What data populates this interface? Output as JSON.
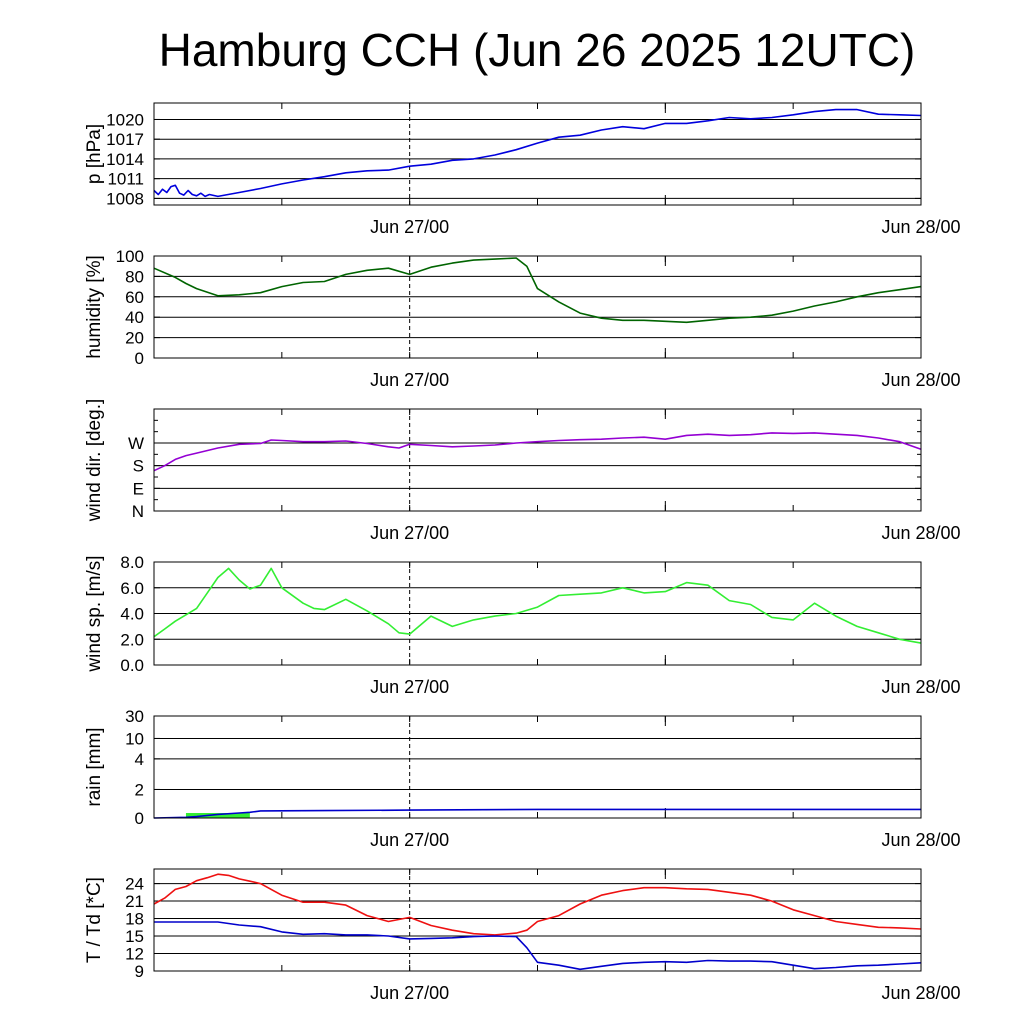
{
  "title": "Hamburg CCH (Jun 26 2025 12UTC)",
  "x_tick_labels": [
    "Jun 27/00",
    "Jun 28/00"
  ],
  "colors": {
    "pressure": "#0000dd",
    "humidity": "#006400",
    "wind_dir": "#9400d3",
    "wind_sp": "#33ee33",
    "rain_line": "#0000cc",
    "rain_bar": "#33ee33",
    "temp": "#ee1111",
    "dewpoint": "#0000cc"
  },
  "chart_data": [
    {
      "type": "line",
      "id": "pressure",
      "ylabel": "p [hPa]",
      "ylim": [
        1007,
        1022.5
      ],
      "yticks": [
        1008,
        1011,
        1014,
        1017,
        1020
      ],
      "ytick_labels": [
        "1008",
        "1011",
        "1014",
        "1017",
        "1020"
      ],
      "xlim": [
        0,
        36
      ],
      "x_tick_hours": [
        12,
        36
      ],
      "series": [
        {
          "color": "#0000dd",
          "x": [
            0,
            0.2,
            0.4,
            0.6,
            0.8,
            1,
            1.2,
            1.4,
            1.6,
            1.8,
            2,
            2.2,
            2.4,
            2.6,
            3,
            4,
            5,
            6,
            7,
            8,
            9,
            10,
            11,
            12,
            13,
            14,
            15,
            16,
            17,
            18,
            19,
            20,
            21,
            22,
            23,
            24,
            25,
            26,
            27,
            28,
            29,
            30,
            31,
            32,
            33,
            34,
            35,
            36
          ],
          "y": [
            1009.2,
            1008.6,
            1009.4,
            1008.9,
            1009.8,
            1010.0,
            1008.8,
            1008.5,
            1009.2,
            1008.6,
            1008.4,
            1008.8,
            1008.3,
            1008.6,
            1008.3,
            1008.9,
            1009.5,
            1010.2,
            1010.8,
            1011.3,
            1011.9,
            1012.2,
            1012.3,
            1012.9,
            1013.2,
            1013.8,
            1014.0,
            1014.6,
            1015.4,
            1016.4,
            1017.3,
            1017.6,
            1018.4,
            1018.9,
            1018.6,
            1019.4,
            1019.4,
            1019.8,
            1020.3,
            1020.1,
            1020.3,
            1020.7,
            1021.2,
            1021.5,
            1021.5,
            1020.8,
            1020.7,
            1020.6
          ]
        }
      ]
    },
    {
      "type": "line",
      "id": "humidity",
      "ylabel": "humidity [%]",
      "ylim": [
        0,
        100
      ],
      "yticks": [
        0,
        20,
        40,
        60,
        80,
        100
      ],
      "ytick_labels": [
        "0",
        "20",
        "40",
        "60",
        "80",
        "100"
      ],
      "xlim": [
        0,
        36
      ],
      "x_tick_hours": [
        12,
        36
      ],
      "series": [
        {
          "color": "#006400",
          "x": [
            0,
            1,
            1.5,
            2,
            3,
            4,
            5,
            6,
            7,
            8,
            9,
            10,
            11,
            12,
            13,
            14,
            15,
            16,
            17,
            17.5,
            18,
            19,
            20,
            21,
            22,
            23,
            24,
            25,
            26,
            27,
            28,
            29,
            30,
            31,
            32,
            33,
            34,
            35,
            36
          ],
          "y": [
            88,
            79,
            73,
            68,
            61,
            62,
            64,
            70,
            74,
            75,
            82,
            86,
            88,
            82,
            89,
            93,
            96,
            97,
            98,
            90,
            68,
            55,
            44,
            39,
            37,
            37,
            36,
            35,
            37,
            39,
            40,
            42,
            46,
            51,
            55,
            60,
            64,
            67,
            70
          ]
        }
      ]
    },
    {
      "type": "line",
      "id": "wind_dir",
      "ylabel": "wind dir. [deg.]",
      "ylim": [
        0,
        405
      ],
      "yticks": [
        0,
        90,
        180,
        270
      ],
      "ytick_labels": [
        "N",
        "E",
        "S",
        "W"
      ],
      "xlim": [
        0,
        36
      ],
      "x_tick_hours": [
        12,
        36
      ],
      "series": [
        {
          "color": "#9400d3",
          "x": [
            0,
            0.5,
            1,
            1.5,
            2,
            3,
            4,
            5,
            5.5,
            6,
            7,
            8,
            9,
            10,
            11,
            11.5,
            12,
            13,
            14,
            15,
            16,
            17,
            18,
            19,
            20,
            21,
            22,
            23,
            24,
            25,
            26,
            27,
            28,
            29,
            30,
            31,
            32,
            33,
            34,
            35,
            36
          ],
          "y": [
            160,
            180,
            205,
            220,
            230,
            250,
            265,
            268,
            282,
            280,
            275,
            275,
            278,
            268,
            255,
            250,
            265,
            260,
            255,
            258,
            262,
            270,
            275,
            280,
            283,
            285,
            290,
            293,
            285,
            300,
            305,
            300,
            303,
            310,
            308,
            310,
            305,
            300,
            290,
            275,
            245
          ]
        }
      ]
    },
    {
      "type": "line",
      "id": "wind_sp",
      "ylabel": "wind sp. [m/s]",
      "ylim": [
        0,
        8
      ],
      "yticks": [
        0,
        2,
        4,
        6,
        8
      ],
      "ytick_labels": [
        "0.0",
        "2.0",
        "4.0",
        "6.0",
        "8.0"
      ],
      "xlim": [
        0,
        36
      ],
      "x_tick_hours": [
        12,
        36
      ],
      "series": [
        {
          "color": "#33ee33",
          "x": [
            0,
            0.5,
            1,
            1.5,
            2,
            2.5,
            3,
            3.5,
            4,
            4.5,
            5,
            5.5,
            6,
            7,
            7.5,
            8,
            9,
            10,
            11,
            11.5,
            12,
            13,
            14,
            15,
            16,
            17,
            18,
            19,
            20,
            21,
            22,
            23,
            24,
            25,
            26,
            27,
            28,
            29,
            30,
            31,
            32,
            33,
            34,
            35,
            36
          ],
          "y": [
            2.2,
            2.8,
            3.4,
            3.9,
            4.4,
            5.6,
            6.8,
            7.5,
            6.6,
            5.9,
            6.2,
            7.5,
            6.0,
            4.8,
            4.4,
            4.3,
            5.1,
            4.2,
            3.2,
            2.5,
            2.4,
            3.8,
            3.0,
            3.5,
            3.8,
            4.0,
            4.5,
            5.4,
            5.5,
            5.6,
            6.0,
            5.6,
            5.7,
            6.4,
            6.2,
            5.0,
            4.7,
            3.7,
            3.5,
            4.8,
            3.8,
            3.0,
            2.5,
            2.0,
            1.7
          ]
        }
      ]
    },
    {
      "type": "area",
      "id": "rain",
      "ylabel": "rain [mm]",
      "ylim": [
        0,
        30
      ],
      "scale": "custom",
      "yticks": [
        0,
        2,
        4,
        10,
        30
      ],
      "ytick_labels": [
        "0",
        "2",
        "4",
        "10",
        "30"
      ],
      "xlim": [
        0,
        36
      ],
      "x_tick_hours": [
        12,
        36
      ],
      "bars": {
        "color": "#33ee33",
        "x_start": 1.5,
        "x_end": 4.5,
        "value": 0.35
      },
      "series": [
        {
          "color": "#0000cc",
          "x": [
            0,
            1.5,
            2,
            3,
            4,
            4.5,
            5,
            8,
            12,
            18,
            24,
            30,
            36
          ],
          "y": [
            0,
            0.05,
            0.1,
            0.25,
            0.35,
            0.4,
            0.5,
            0.52,
            0.55,
            0.6,
            0.6,
            0.6,
            0.6
          ]
        }
      ]
    },
    {
      "type": "line",
      "id": "temp",
      "ylabel": "T / Td [*C]",
      "ylim": [
        9,
        26.5
      ],
      "yticks": [
        9,
        12,
        15,
        18,
        21,
        24
      ],
      "ytick_labels": [
        "9",
        "12",
        "15",
        "18",
        "21",
        "24"
      ],
      "xlim": [
        0,
        36
      ],
      "x_tick_hours": [
        12,
        36
      ],
      "series": [
        {
          "name": "",
          "color": "#ee1111",
          "x": [
            0,
            0.5,
            1,
            1.5,
            2,
            2.5,
            3,
            3.5,
            4,
            4.5,
            5,
            6,
            7,
            8,
            9,
            10,
            11,
            12,
            13,
            14,
            15,
            16,
            17,
            17.5,
            18,
            19,
            20,
            21,
            22,
            23,
            24,
            25,
            26,
            27,
            28,
            29,
            30,
            31,
            32,
            33,
            34,
            35,
            36
          ],
          "y": [
            20.5,
            21.5,
            23,
            23.5,
            24.5,
            25,
            25.6,
            25.4,
            24.8,
            24.4,
            24,
            22,
            20.8,
            20.8,
            20.3,
            18.5,
            17.5,
            18.2,
            16.8,
            16.0,
            15.4,
            15.2,
            15.5,
            16.0,
            17.5,
            18.5,
            20.5,
            22.0,
            22.8,
            23.3,
            23.3,
            23.1,
            23,
            22.5,
            22,
            21,
            19.5,
            18.5,
            17.5,
            17,
            16.5,
            16.4,
            16.2
          ]
        },
        {
          "name": "",
          "color": "#0000cc",
          "x": [
            0,
            1,
            2,
            3,
            4,
            5,
            6,
            7,
            8,
            9,
            10,
            11,
            12,
            13,
            14,
            15,
            16,
            17,
            17.5,
            18,
            19,
            20,
            21,
            22,
            23,
            24,
            25,
            26,
            27,
            28,
            29,
            30,
            31,
            32,
            33,
            34,
            35,
            36
          ],
          "y": [
            17.4,
            17.4,
            17.4,
            17.4,
            16.9,
            16.6,
            15.7,
            15.3,
            15.4,
            15.2,
            15.2,
            15.0,
            14.5,
            14.6,
            14.7,
            14.9,
            15.0,
            14.9,
            13.0,
            10.5,
            10.0,
            9.3,
            9.8,
            10.3,
            10.5,
            10.6,
            10.5,
            10.8,
            10.7,
            10.7,
            10.6,
            10.0,
            9.4,
            9.6,
            9.9,
            10.0,
            10.2,
            10.4
          ]
        }
      ]
    }
  ]
}
